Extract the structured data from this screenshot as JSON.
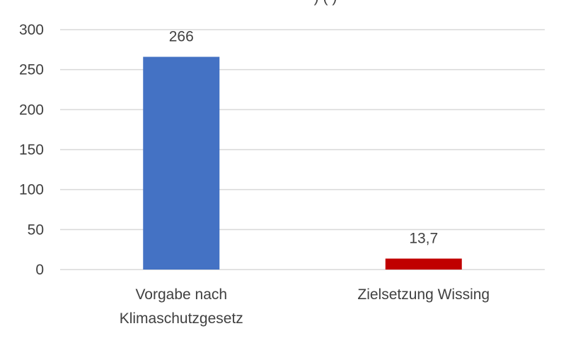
{
  "chart_data": {
    "type": "bar",
    "title_fragment": ") ( )",
    "categories": [
      [
        "Vorgabe nach",
        "Klimaschutzgesetz"
      ],
      [
        "Zielsetzung Wissing"
      ]
    ],
    "values": [
      266,
      13.7
    ],
    "value_labels": [
      "266",
      "13,7"
    ],
    "bar_colors": [
      "#4472c4",
      "#c00000"
    ],
    "ylim": [
      0,
      300
    ],
    "yticks": [
      0,
      50,
      100,
      150,
      200,
      250,
      300
    ],
    "grid": true,
    "legend": false
  }
}
